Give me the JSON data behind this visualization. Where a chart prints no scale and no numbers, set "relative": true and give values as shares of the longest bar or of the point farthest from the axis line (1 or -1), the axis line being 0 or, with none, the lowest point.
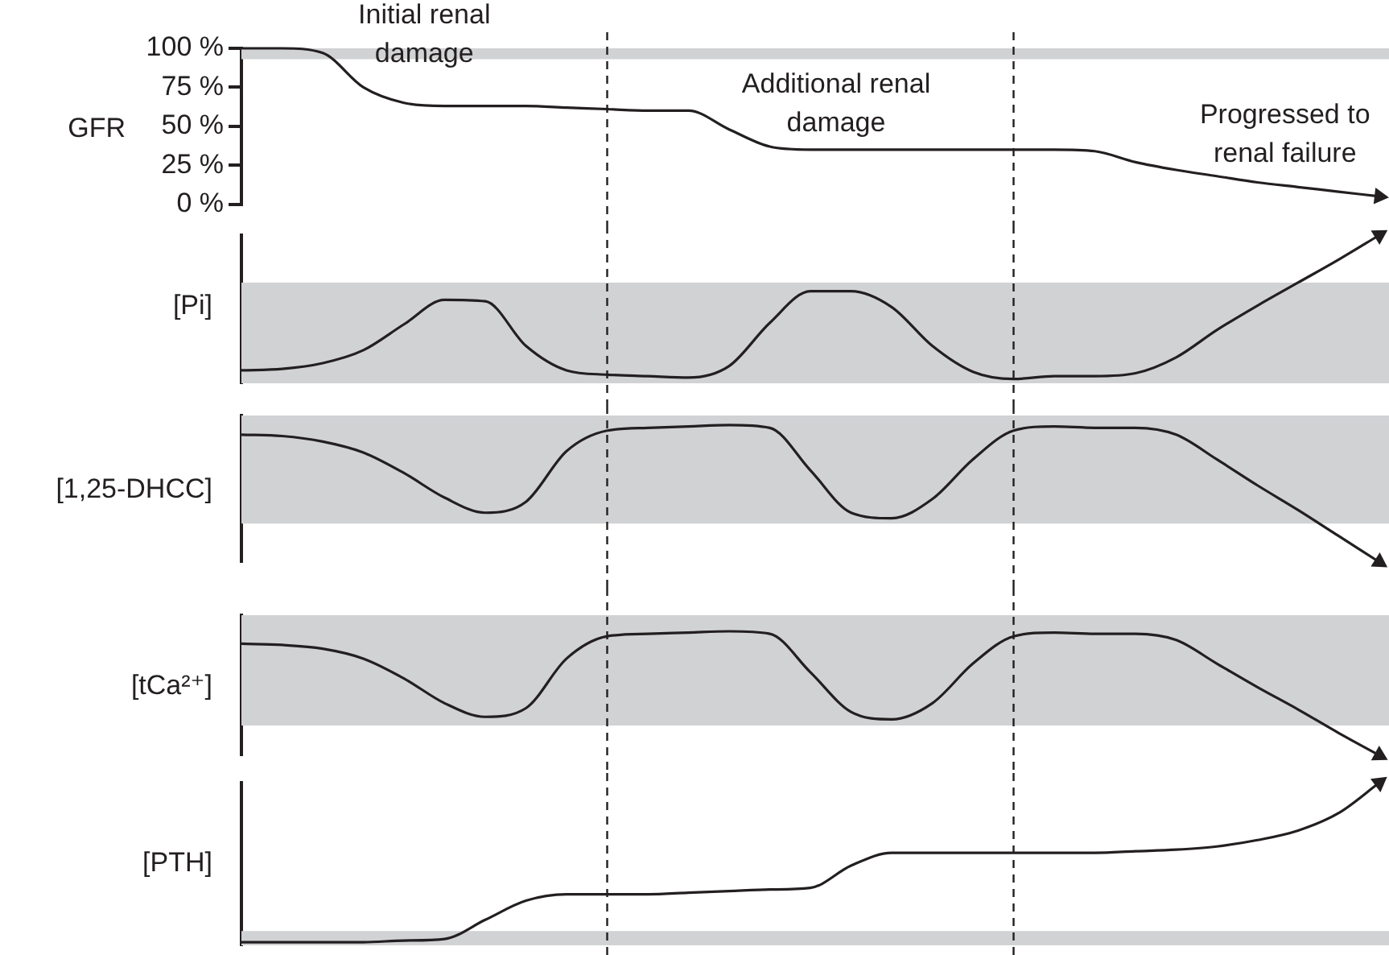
{
  "chart_data": [
    {
      "type": "line",
      "ylabel": "GFR",
      "categories": [
        null,
        null,
        null,
        null,
        null,
        null,
        null,
        null,
        null,
        null,
        null,
        null,
        null,
        null,
        null,
        null,
        null,
        null,
        null,
        null,
        null,
        null,
        null,
        null,
        null,
        null,
        null,
        null,
        null
      ],
      "values": [
        100,
        100,
        97,
        75,
        65,
        63,
        63,
        63,
        62,
        61,
        60,
        60,
        48,
        37,
        35,
        35,
        35,
        35,
        35,
        35,
        35,
        34,
        27,
        22,
        18,
        14,
        11,
        8,
        5
      ],
      "color": "#231f20",
      "marker": "none",
      "ylim": [
        0,
        100
      ],
      "yticks": [
        {
          "value": 0,
          "label": "0 %"
        },
        {
          "value": 25,
          "label": "25 %"
        },
        {
          "value": 50,
          "label": "50 %"
        },
        {
          "value": 75,
          "label": "75 %"
        },
        {
          "value": 100,
          "label": "100 %"
        }
      ],
      "bands": [
        {
          "axis": "y",
          "from": 93,
          "to": 100,
          "color": "#d1d2d4"
        }
      ],
      "annotations": [
        "Initial renal damage",
        "Additional renal damage",
        "Progressed to renal failure"
      ]
    },
    {
      "type": "line",
      "ylabel": "[Pi]",
      "relative": true,
      "categories": [
        null,
        null,
        null,
        null,
        null,
        null,
        null,
        null,
        null,
        null,
        null,
        null,
        null,
        null,
        null,
        null,
        null,
        null,
        null,
        null,
        null,
        null,
        null,
        null,
        null,
        null,
        null,
        null,
        null
      ],
      "values": [
        0.06,
        0.07,
        0.11,
        0.2,
        0.38,
        0.55,
        0.54,
        0.23,
        0.06,
        0.03,
        0.02,
        0.01,
        0.09,
        0.39,
        0.61,
        0.61,
        0.5,
        0.23,
        0.05,
        0,
        0.02,
        0.02,
        0.04,
        0.15,
        0.34,
        0.51,
        0.67,
        0.83,
        1
      ],
      "color": "#231f20",
      "marker": "none",
      "bands": [
        {
          "axis": "y",
          "from": -0.03,
          "to": 0.67,
          "color": "#d1d2d4"
        }
      ]
    },
    {
      "type": "line",
      "ylabel": "[1,25-DHCC]",
      "relative": true,
      "categories": [
        null,
        null,
        null,
        null,
        null,
        null,
        null,
        null,
        null,
        null,
        null,
        null,
        null,
        null,
        null,
        null,
        null,
        null,
        null,
        null,
        null,
        null,
        null,
        null,
        null,
        null,
        null,
        null,
        null
      ],
      "values": [
        0.93,
        0.92,
        0.88,
        0.8,
        0.65,
        0.47,
        0.36,
        0.44,
        0.81,
        0.96,
        0.98,
        0.99,
        1,
        0.98,
        0.67,
        0.36,
        0.32,
        0.46,
        0.75,
        0.96,
        0.99,
        0.98,
        0.98,
        0.93,
        0.75,
        0.56,
        0.38,
        0.19,
        0
      ],
      "color": "#231f20",
      "marker": "none",
      "bands": [
        {
          "axis": "y",
          "from": 0.28,
          "to": 1.07,
          "color": "#d1d2d4"
        }
      ]
    },
    {
      "type": "line",
      "ylabel": "[tCa²⁺]",
      "relative": true,
      "categories": [
        null,
        null,
        null,
        null,
        null,
        null,
        null,
        null,
        null,
        null,
        null,
        null,
        null,
        null,
        null,
        null,
        null,
        null,
        null,
        null,
        null,
        null,
        null,
        null,
        null,
        null,
        null,
        null,
        null
      ],
      "values": [
        0.9,
        0.89,
        0.86,
        0.78,
        0.62,
        0.42,
        0.31,
        0.38,
        0.78,
        0.96,
        0.98,
        0.99,
        1,
        0.98,
        0.67,
        0.35,
        0.29,
        0.42,
        0.74,
        0.96,
        0.99,
        0.98,
        0.98,
        0.93,
        0.74,
        0.55,
        0.37,
        0.18,
        0
      ],
      "color": "#231f20",
      "marker": "none",
      "bands": [
        {
          "axis": "y",
          "from": 0.24,
          "to": 1.13,
          "color": "#d1d2d4"
        }
      ]
    },
    {
      "type": "line",
      "ylabel": "[PTH]",
      "relative": true,
      "categories": [
        null,
        null,
        null,
        null,
        null,
        null,
        null,
        null,
        null,
        null,
        null,
        null,
        null,
        null,
        null,
        null,
        null,
        null,
        null,
        null,
        null,
        null,
        null,
        null,
        null,
        null,
        null,
        null,
        null
      ],
      "values": [
        0,
        0,
        0,
        0,
        0.01,
        0.02,
        0.14,
        0.26,
        0.3,
        0.3,
        0.3,
        0.31,
        0.32,
        0.33,
        0.34,
        0.48,
        0.56,
        0.56,
        0.56,
        0.56,
        0.56,
        0.56,
        0.57,
        0.58,
        0.6,
        0.64,
        0.7,
        0.81,
        1
      ],
      "color": "#231f20",
      "marker": "none",
      "bands": [
        {
          "axis": "y",
          "from": -0.02,
          "to": 0.07,
          "color": "#d1d2d4"
        }
      ]
    }
  ]
}
